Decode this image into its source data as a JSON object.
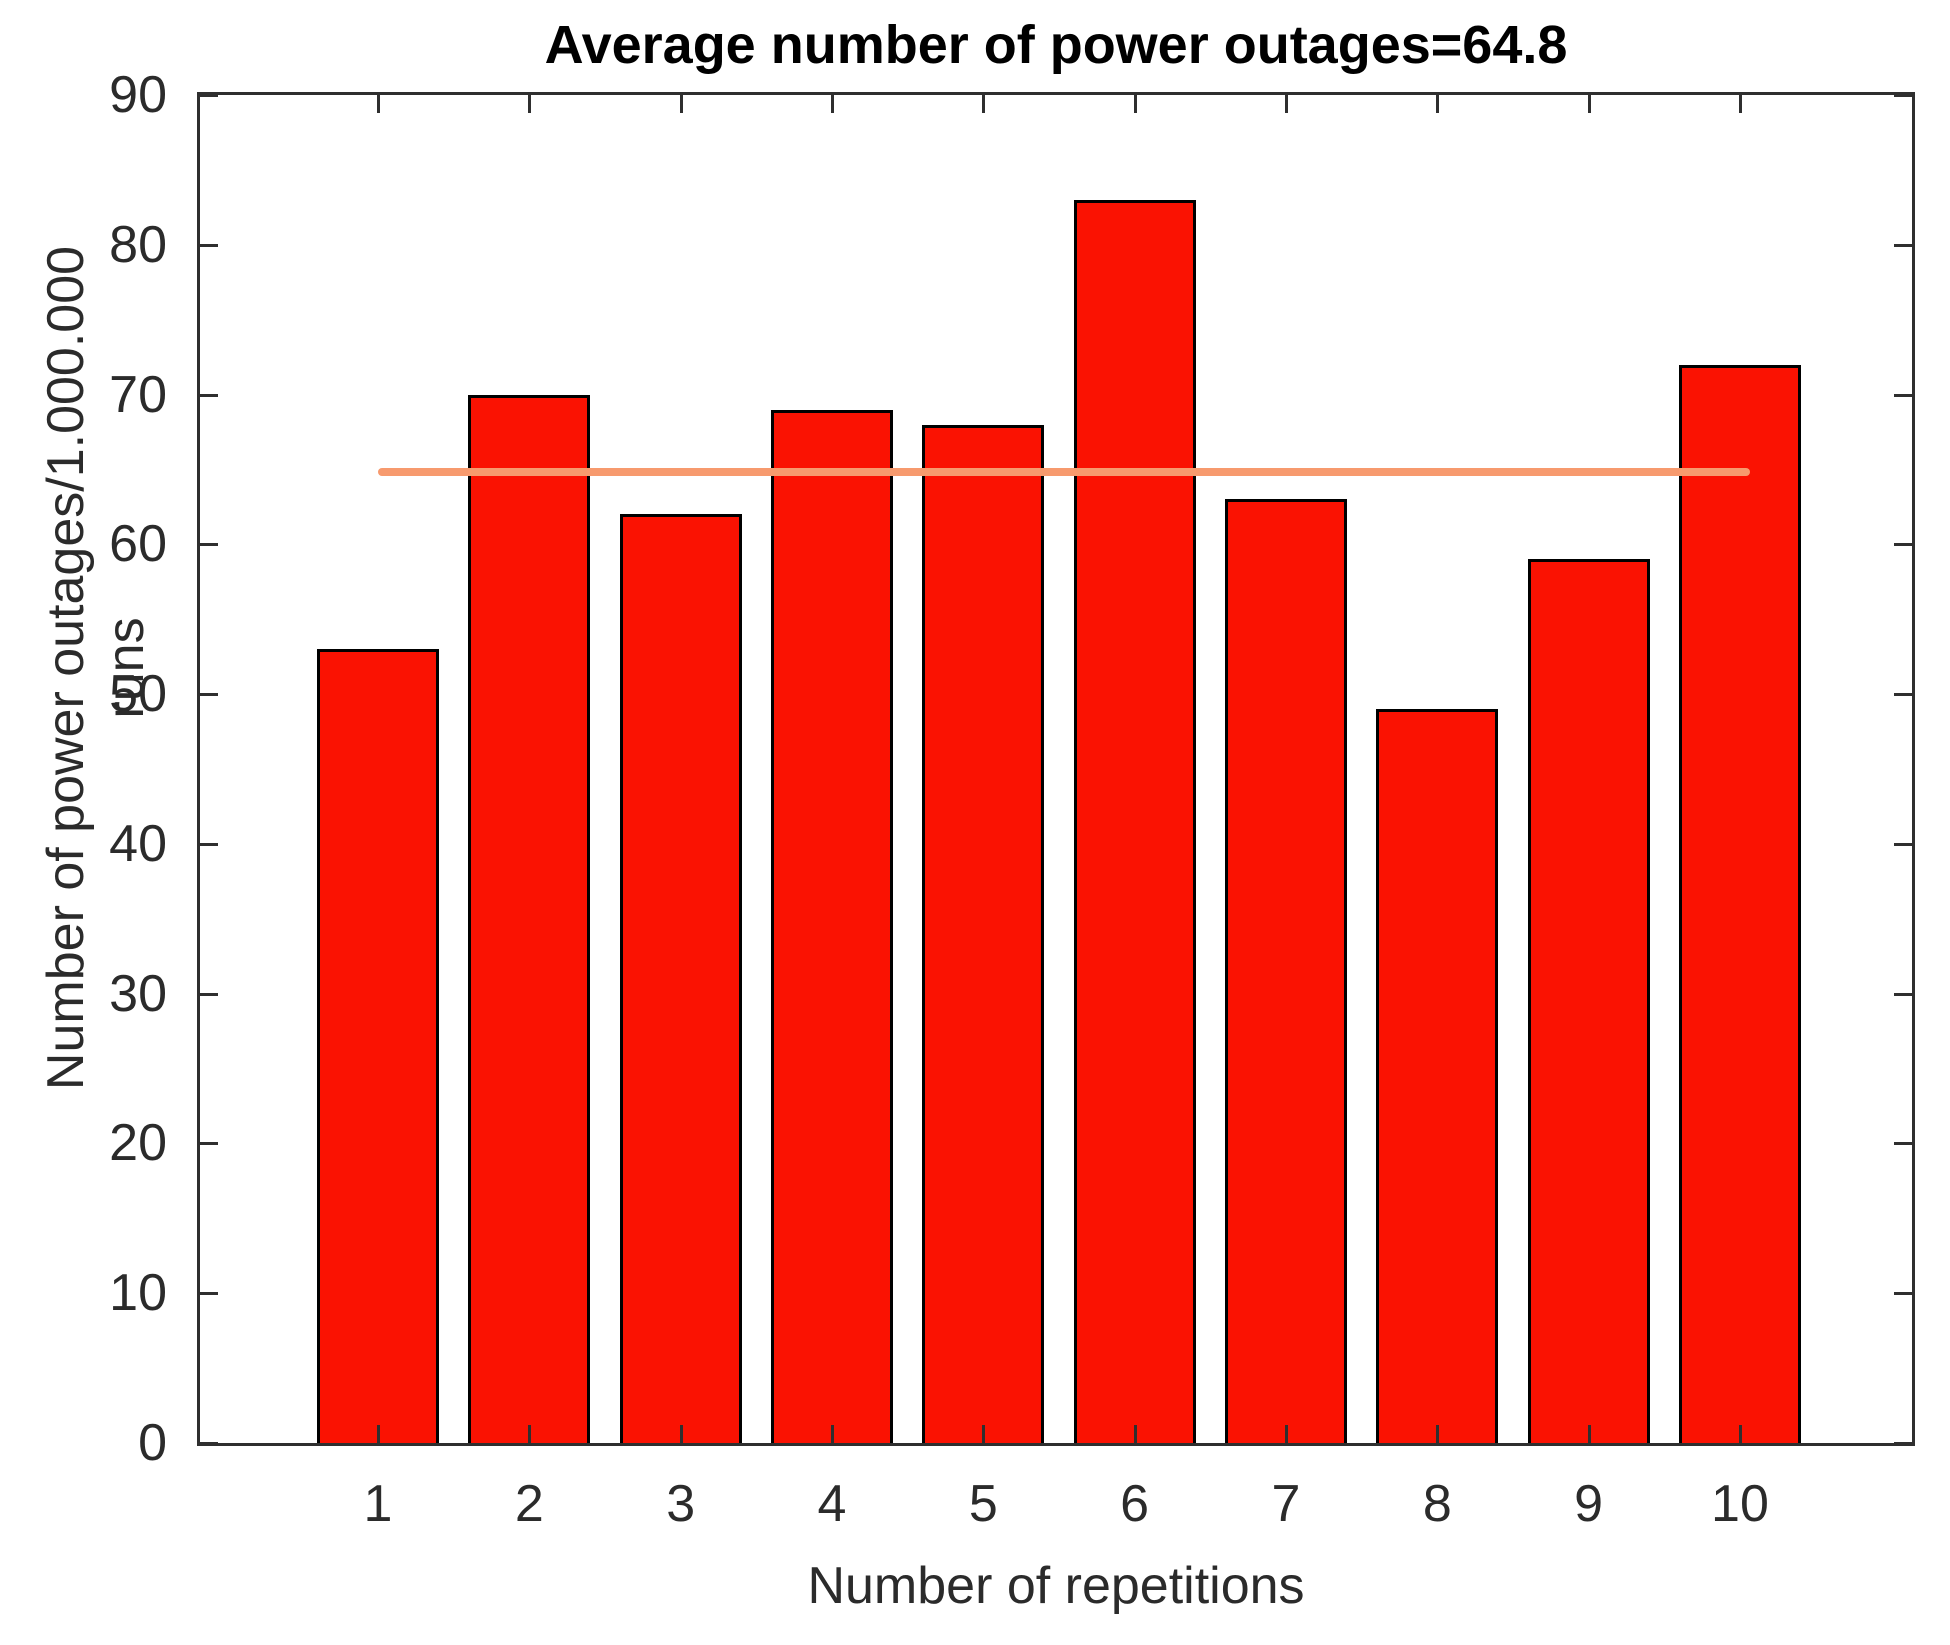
{
  "chart_data": {
    "type": "bar",
    "title": "Average number of power outages=64.8",
    "xlabel": "Number of repetitions",
    "ylabel": "Number of power outages/1.000.000 runs",
    "categories": [
      "1",
      "2",
      "3",
      "4",
      "5",
      "6",
      "7",
      "8",
      "9",
      "10"
    ],
    "values": [
      53,
      70,
      62,
      69,
      68,
      83,
      63,
      49,
      59,
      72
    ],
    "average": 64.8,
    "mean_line": {
      "value": 64.8,
      "x_start": 1,
      "x_end": 10,
      "color": "#f79a6e"
    },
    "ylim": [
      0,
      90
    ],
    "yticks": [
      0,
      10,
      20,
      30,
      40,
      50,
      60,
      70,
      80,
      90
    ],
    "bar_color": "#fa1202",
    "bar_edge_color": "#000000",
    "axis_color": "#2f2f2f",
    "tick_label_color": "#2b2b2b",
    "grid": false,
    "legend": null
  }
}
